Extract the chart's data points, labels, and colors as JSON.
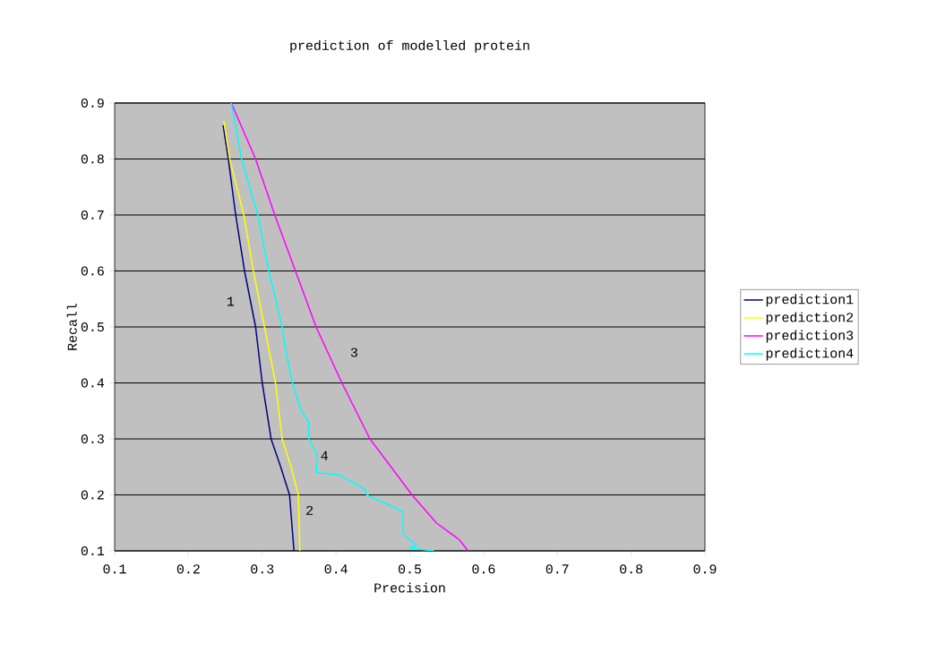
{
  "chart_data": {
    "type": "line",
    "title": "prediction of modelled protein",
    "xlabel": "Precision",
    "ylabel": "Recall",
    "xlim": [
      0.1,
      0.9
    ],
    "ylim": [
      0.1,
      0.9
    ],
    "xticks": [
      0.1,
      0.2,
      0.3,
      0.4,
      0.5,
      0.6,
      0.7,
      0.8,
      0.9
    ],
    "yticks": [
      0.1,
      0.2,
      0.3,
      0.4,
      0.5,
      0.6,
      0.7,
      0.8,
      0.9
    ],
    "grid": "y",
    "legend": "right",
    "marker": "none",
    "line_style": "solid",
    "series": [
      {
        "name": "prediction1",
        "color": "#000080",
        "x": [
          0.247,
          0.254,
          0.264,
          0.276,
          0.291,
          0.3,
          0.312,
          0.325,
          0.337,
          0.343
        ],
        "values": [
          0.86,
          0.8,
          0.7,
          0.6,
          0.5,
          0.4,
          0.3,
          0.25,
          0.2,
          0.1
        ]
      },
      {
        "name": "prediction2",
        "color": "#ffff00",
        "x": [
          0.248,
          0.256,
          0.275,
          0.288,
          0.303,
          0.318,
          0.327,
          0.339,
          0.349,
          0.35,
          0.351
        ],
        "values": [
          0.868,
          0.8,
          0.7,
          0.6,
          0.5,
          0.4,
          0.3,
          0.25,
          0.2,
          0.15,
          0.1
        ]
      },
      {
        "name": "prediction3",
        "color": "#ff00ff",
        "x": [
          0.258,
          0.291,
          0.317,
          0.345,
          0.373,
          0.408,
          0.446,
          0.503,
          0.536,
          0.567,
          0.579
        ],
        "values": [
          0.9,
          0.8,
          0.7,
          0.6,
          0.5,
          0.4,
          0.3,
          0.2,
          0.15,
          0.12,
          0.1
        ]
      },
      {
        "name": "prediction4",
        "color": "#00ffff",
        "x": [
          0.258,
          0.272,
          0.294,
          0.309,
          0.327,
          0.333,
          0.341,
          0.353,
          0.363,
          0.363,
          0.375,
          0.373,
          0.406,
          0.439,
          0.442,
          0.491,
          0.491,
          0.509,
          0.499,
          0.533
        ],
        "values": [
          0.9,
          0.8,
          0.7,
          0.6,
          0.5,
          0.45,
          0.4,
          0.35,
          0.33,
          0.3,
          0.27,
          0.24,
          0.235,
          0.21,
          0.2,
          0.17,
          0.13,
          0.11,
          0.105,
          0.1
        ]
      }
    ],
    "annotations": [
      "1",
      "2",
      "3",
      "4"
    ]
  }
}
